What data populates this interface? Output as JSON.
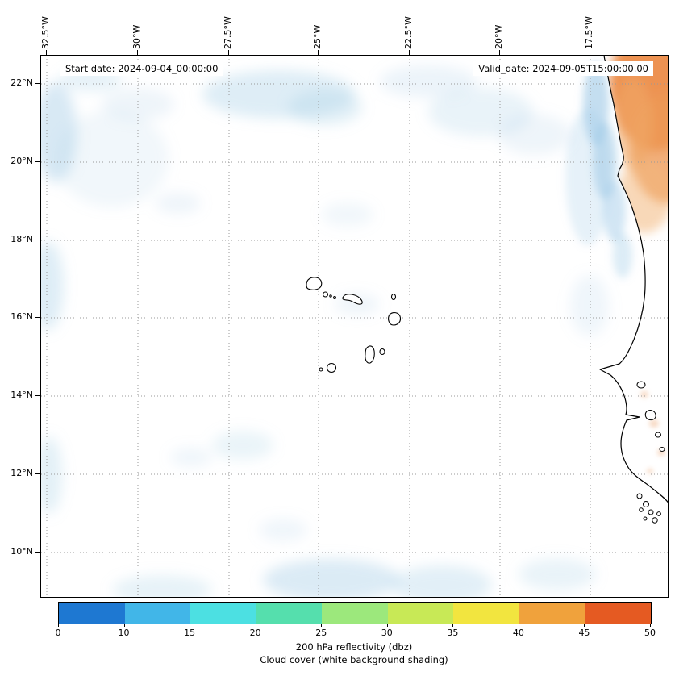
{
  "figure": {
    "annotations": {
      "start_date": "Start date: 2024-09-04_00:00:00",
      "valid_date": "Valid_date: 2024-09-05T15:00:00.00"
    },
    "axes": {
      "top_tick_labels": [
        "32.5°W",
        "30°W",
        "27.5°W",
        "25°W",
        "22.5°W",
        "20°W",
        "17.5°W"
      ],
      "left_tick_labels": [
        "22°N",
        "20°N",
        "18°N",
        "16°N",
        "14°N",
        "12°N",
        "10°N"
      ]
    },
    "colorbar": {
      "tick_labels": [
        "0",
        "10",
        "15",
        "20",
        "25",
        "30",
        "35",
        "40",
        "45",
        "50"
      ],
      "segment_colors": [
        "#1e78d2",
        "#41b6e8",
        "#4ce0e2",
        "#55dfad",
        "#9ce87c",
        "#c8e956",
        "#f2e53f",
        "#f0a23c",
        "#e55a22"
      ],
      "label_line1": "200 hPa reflectivity (dbz)",
      "label_line2": "Cloud cover (white background shading)"
    }
  },
  "chart_data": {
    "type": "heatmap",
    "projection": "plate-carree map of eastern tropical North Atlantic / West Africa",
    "x_axis": {
      "label": "longitude",
      "ticks_deg_west": [
        32.5,
        30,
        27.5,
        25,
        22.5,
        20,
        17.5
      ],
      "approx_range_deg_west": [
        32.7,
        15.3
      ]
    },
    "y_axis": {
      "label": "latitude",
      "ticks_deg_north": [
        22,
        20,
        18,
        16,
        14,
        12,
        10
      ],
      "approx_range_deg_north": [
        8.8,
        22.7
      ]
    },
    "grid": "dotted gray graticule every 2.5 deg lon and 2 deg lat",
    "colorbar": {
      "label": "200 hPa reflectivity (dbz)",
      "levels": [
        0,
        10,
        15,
        20,
        25,
        30,
        35,
        40,
        45,
        50
      ],
      "colors": [
        "#1e78d2",
        "#41b6e8",
        "#4ce0e2",
        "#55dfad",
        "#9ce87c",
        "#c8e956",
        "#f2e53f",
        "#f0a23c",
        "#e55a22"
      ]
    },
    "annotations": [
      "Start date: 2024-09-04_00:00:00",
      "Valid_date: 2024-09-05T15:00:00.00"
    ],
    "features": [
      {
        "feature": "orange high-reflectivity region (~40-50 dbz) over northwest African coast / Western Sahara",
        "approx_lon_deg_w": [
          15.3,
          18.0
        ],
        "approx_lat_deg_n": [
          19.5,
          22.7
        ]
      },
      {
        "feature": "light blue band (~10-20 dbz) hugging the Mauritanian coastline",
        "approx_lat_deg_n": [
          18.5,
          22.5
        ]
      },
      {
        "feature": "faint pale-blue cloud shading (0-10 dbz) patches: top-left corner, top-center near 25-28W / 21-22N, along left edge, near Cape Verde islands, and a broken band along the bottom near 9-10N"
      },
      {
        "feature": "Cape Verde island coastlines outlined in black near 22.5-25.5W, 14.8-17.2N"
      },
      {
        "feature": "West African coastline from Western Sahara to Guinea-Bissau, including Cap-Vert peninsula (~17.5W, 14.7N) and Bijagos island cluster near the lower-right edge"
      }
    ]
  }
}
